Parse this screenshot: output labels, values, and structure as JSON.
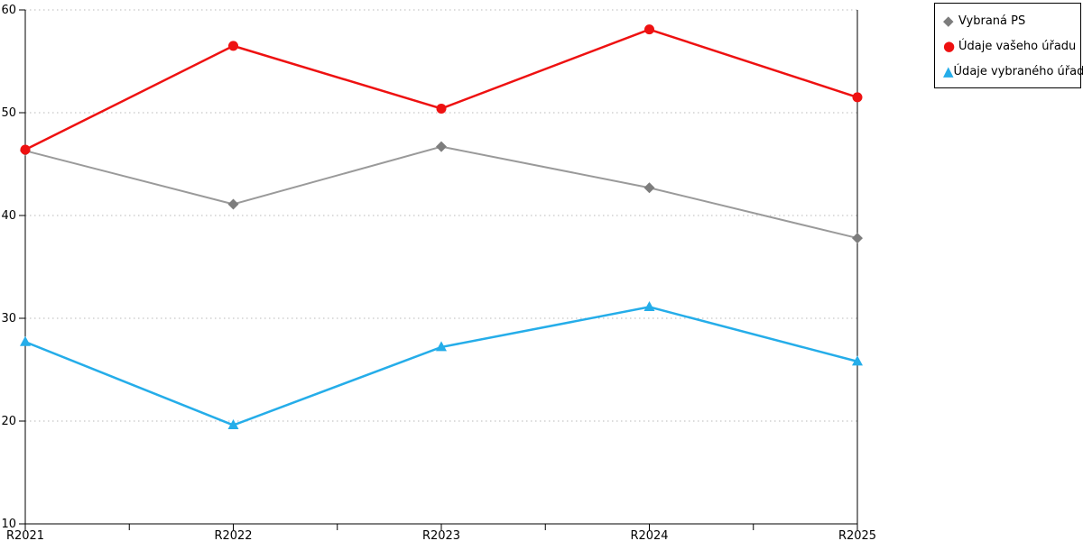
{
  "chart_data": {
    "type": "line",
    "categories": [
      "R2021",
      "R2022",
      "R2023",
      "R2024",
      "R2025"
    ],
    "series": [
      {
        "name": "Vybraná PS",
        "values": [
          46.3,
          41.1,
          46.7,
          42.7,
          37.8
        ],
        "color": "#9a9a9a",
        "marker_color": "#7d7d7d",
        "marker": "diamond",
        "line_width": 2
      },
      {
        "name": "Údaje vašeho úřadu",
        "values": [
          46.4,
          56.5,
          50.4,
          58.1,
          51.5
        ],
        "color": "#ee1111",
        "marker_color": "#ee1111",
        "marker": "circle",
        "line_width": 2.5
      },
      {
        "name": "Údaje vybraného úřadu",
        "values": [
          27.7,
          19.6,
          27.2,
          31.1,
          25.8
        ],
        "color": "#25ade9",
        "marker_color": "#25ade9",
        "marker": "triangle",
        "line_width": 2.5
      }
    ],
    "yticks": [
      10,
      20,
      30,
      40,
      50,
      60
    ],
    "ylim": [
      10,
      60
    ],
    "xlabel": "",
    "ylabel": "",
    "title": "",
    "grid": "horizontal dotted",
    "gridline_color": "#b8b8b8",
    "axis_color": "#000000",
    "legend_position": "top-right outside plot"
  },
  "legend": {
    "items": [
      {
        "glyph": "◆",
        "label": "Vybraná PS"
      },
      {
        "glyph": "●",
        "label": "Údaje vašeho úřadu"
      },
      {
        "glyph": "▲",
        "label": "Údaje vybraného úřadu"
      }
    ]
  }
}
